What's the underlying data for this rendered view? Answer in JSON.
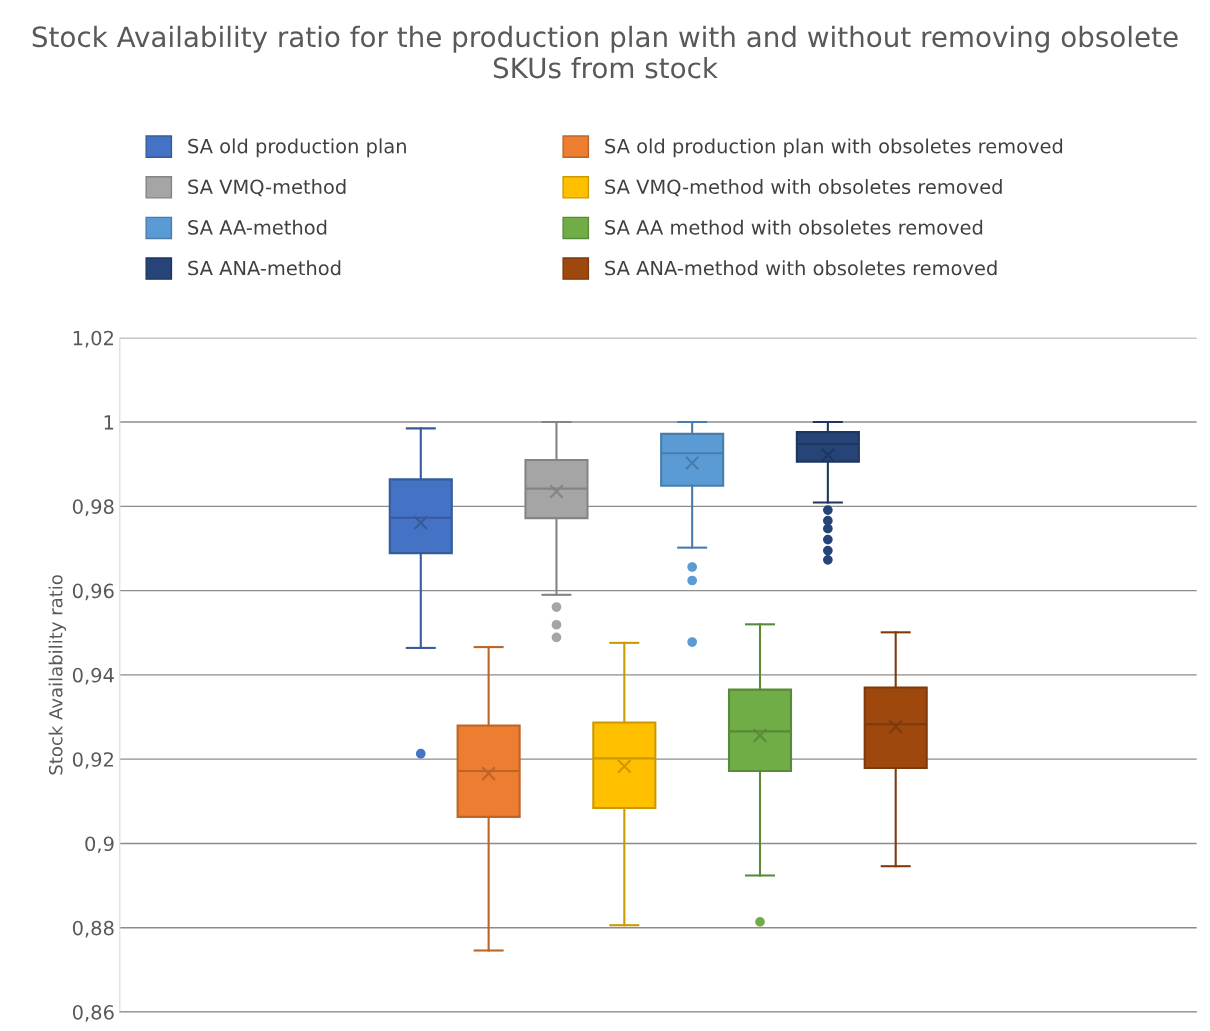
{
  "chart_data": {
    "type": "box",
    "title": "Stock Availability ratio for the production plan with and without removing obsolete SKUs from stock",
    "ylabel": "Stock Availability ratio",
    "categories": [
      null
    ],
    "series": [
      {
        "name": "SA old production plan",
        "color": "#4472c4",
        "boxes": [
          {
            "low": 0.9464,
            "q1": 0.9689,
            "median": 0.9773,
            "q3": 0.9864,
            "high": 0.9985,
            "mean": 0.9761,
            "outliers": [
              0.9213
            ]
          }
        ]
      },
      {
        "name": "SA old production plan with obsoletes removed",
        "color": "#ed7d31",
        "boxes": [
          {
            "low": 0.8746,
            "q1": 0.9063,
            "median": 0.9172,
            "q3": 0.928,
            "high": 0.9466,
            "mean": 0.9166
          }
        ]
      },
      {
        "name": "SA VMQ-method",
        "color": "#a5a5a5",
        "boxes": [
          {
            "low": 0.959,
            "q1": 0.9772,
            "median": 0.9842,
            "q3": 0.991,
            "high": 1.0,
            "mean": 0.9835,
            "outliers": [
              0.9561,
              0.9519,
              0.9489
            ]
          }
        ]
      },
      {
        "name": "SA VMQ-method with obsoletes removed",
        "color": "#ffc000",
        "boxes": [
          {
            "low": 0.8806,
            "q1": 0.9084,
            "median": 0.9202,
            "q3": 0.9287,
            "high": 0.9476,
            "mean": 0.9183
          }
        ]
      },
      {
        "name": "SA AA-method",
        "color": "#5b9bd5",
        "boxes": [
          {
            "low": 0.9702,
            "q1": 0.9849,
            "median": 0.9926,
            "q3": 0.9972,
            "high": 1.0,
            "mean": 0.9903,
            "outliers": [
              0.9656,
              0.9624,
              0.9478
            ]
          }
        ]
      },
      {
        "name": "SA AA method with obsoletes removed",
        "color": "#70ad47",
        "boxes": [
          {
            "low": 0.8924,
            "q1": 0.9172,
            "median": 0.9266,
            "q3": 0.9365,
            "high": 0.952,
            "mean": 0.9256,
            "outliers": [
              0.8814
            ]
          }
        ]
      },
      {
        "name": "SA ANA-method",
        "color": "#264478",
        "boxes": [
          {
            "low": 0.9809,
            "q1": 0.9906,
            "median": 0.9948,
            "q3": 0.9976,
            "high": 1.0,
            "mean": 0.9922,
            "outliers": [
              0.9791,
              0.9766,
              0.9747,
              0.9721,
              0.9695,
              0.9673
            ]
          }
        ]
      },
      {
        "name": "SA ANA-method with obsoletes removed",
        "color": "#9e480e",
        "boxes": [
          {
            "low": 0.8946,
            "q1": 0.9179,
            "median": 0.9283,
            "q3": 0.937,
            "high": 0.9501,
            "mean": 0.9277
          }
        ]
      }
    ],
    "ylim": [
      0.86,
      1.02
    ],
    "yticks": [
      {
        "value": 0.86,
        "label": "0,86"
      },
      {
        "value": 0.88,
        "label": "0,88"
      },
      {
        "value": 0.9,
        "label": "0,9"
      },
      {
        "value": 0.92,
        "label": "0,92"
      },
      {
        "value": 0.94,
        "label": "0,94"
      },
      {
        "value": 0.96,
        "label": "0,96"
      },
      {
        "value": 0.98,
        "label": "0,98"
      },
      1,
      {
        "value": 1.02,
        "label": "1,02"
      }
    ],
    "grid": "y",
    "legend": "top",
    "tick_labels": "y",
    "marker": "circle"
  }
}
